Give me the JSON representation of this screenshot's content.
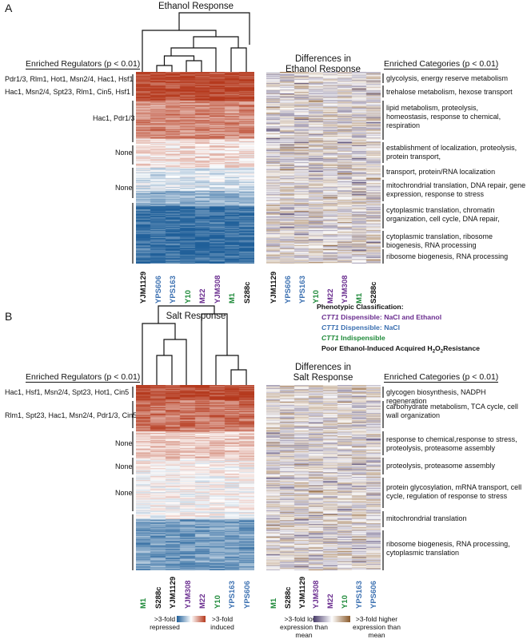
{
  "panel_a": {
    "label": "A",
    "title": "Ethanol Response",
    "regulators_header": "Enriched Regulators (p < 0.01)",
    "differences_title_line1": "Differences in",
    "differences_title_line2": "Ethanol Response",
    "categories_header": "Enriched Categories (p < 0.01)",
    "regulators": [
      "Pdr1/3, Rlm1, Hot1, Msn2/4, Hac1, Hsf1",
      "Hac1, Msn2/4, Spt23, Rlm1, Cin5, Hsf1",
      "Hac1, Pdr1/3",
      "None",
      "None"
    ],
    "categories": [
      "glycolysis, energy reserve metabolism",
      "trehalose metabolism, hexose transport",
      "lipid metabolism, proteolysis, homeostasis, response to chemical, respiration",
      "establishment of localization, proteolysis, protein transport,",
      "transport, protein/RNA localization",
      "mitochrondrial translation, DNA repair, gene expression, response to stress",
      "cytoplasmic translation, chromatin organization, cell cycle, DNA repair,",
      "cytoplasmic translation, ribosome biogenesis, RNA processing",
      "ribosome biogenesis, RNA processing"
    ],
    "strains": [
      {
        "name": "YJM1129",
        "color": "#111111"
      },
      {
        "name": "YPS606",
        "color": "#3a6fb0"
      },
      {
        "name": "YPS163",
        "color": "#3a6fb0"
      },
      {
        "name": "Y10",
        "color": "#1f8a3a"
      },
      {
        "name": "M22",
        "color": "#6a2d8f"
      },
      {
        "name": "YJM308",
        "color": "#6a2d8f"
      },
      {
        "name": "M1",
        "color": "#1f8a3a"
      },
      {
        "name": "S288c",
        "color": "#111111"
      }
    ]
  },
  "panel_b": {
    "label": "B",
    "title": "Salt Response",
    "regulators_header": "Enriched Regulators (p < 0.01)",
    "differences_title_line1": "Differences in",
    "differences_title_line2": "Salt Response",
    "categories_header": "Enriched Categories (p < 0.01)",
    "regulators": [
      "Hac1, Hsf1, Msn2/4, Spt23, Hot1, Cin5",
      "Rlm1, Spt23, Hac1, Msn2/4, Pdr1/3, Cin5",
      "None",
      "None",
      "None"
    ],
    "categories": [
      "glycogen biosynthesis, NADPH regeneration",
      "carbohydrate metabolism, TCA cycle, cell wall organization",
      "response to chemical,response to stress, proteolysis, proteasome assembly",
      "proteolysis, proteasome assembly",
      "protein glycosylation, mRNA transport, cell cycle, regulation of response to stress",
      "mitochrondrial translation",
      "ribosome biogenesis, RNA processing, cytoplasmic translation"
    ],
    "strains": [
      {
        "name": "M1",
        "color": "#1f8a3a"
      },
      {
        "name": "S288c",
        "color": "#111111"
      },
      {
        "name": "YJM1129",
        "color": "#111111"
      },
      {
        "name": "YJM308",
        "color": "#6a2d8f"
      },
      {
        "name": "M22",
        "color": "#6a2d8f"
      },
      {
        "name": "Y10",
        "color": "#1f8a3a"
      },
      {
        "name": "YPS163",
        "color": "#3a6fb0"
      },
      {
        "name": "YPS606",
        "color": "#3a6fb0"
      }
    ]
  },
  "phenotypic_classification": {
    "header": "Phenotypic Classification:",
    "ctt1": "CTT1",
    "dispensable_nacl_ethanol": " Dispensible: NaCl and Ethanol",
    "dispensable_nacl": " Dispensible: NaCl",
    "indispensable": " Indispensible",
    "poor_ethanol_prefix": "Poor Ethanol-Induced Acquired H",
    "h2o2_sub_2": "2",
    "o_letter": "O",
    "resistance_suffix": "Resistance",
    "colors": {
      "purple": "#6a2d8f",
      "blue": "#3a6fb0",
      "green": "#1f8a3a",
      "black": "#111111"
    }
  },
  "legend_left": {
    "low": ">3-fold repressed",
    "high": ">3-fold induced"
  },
  "legend_right": {
    "low": ">3-fold lower expression than mean",
    "high": ">3-fold higher expression than mean"
  },
  "colors": {
    "red": "#b5391d",
    "blue": "#1f5f99",
    "brown": "#8a5a2b",
    "purple": "#4a3d6b"
  }
}
